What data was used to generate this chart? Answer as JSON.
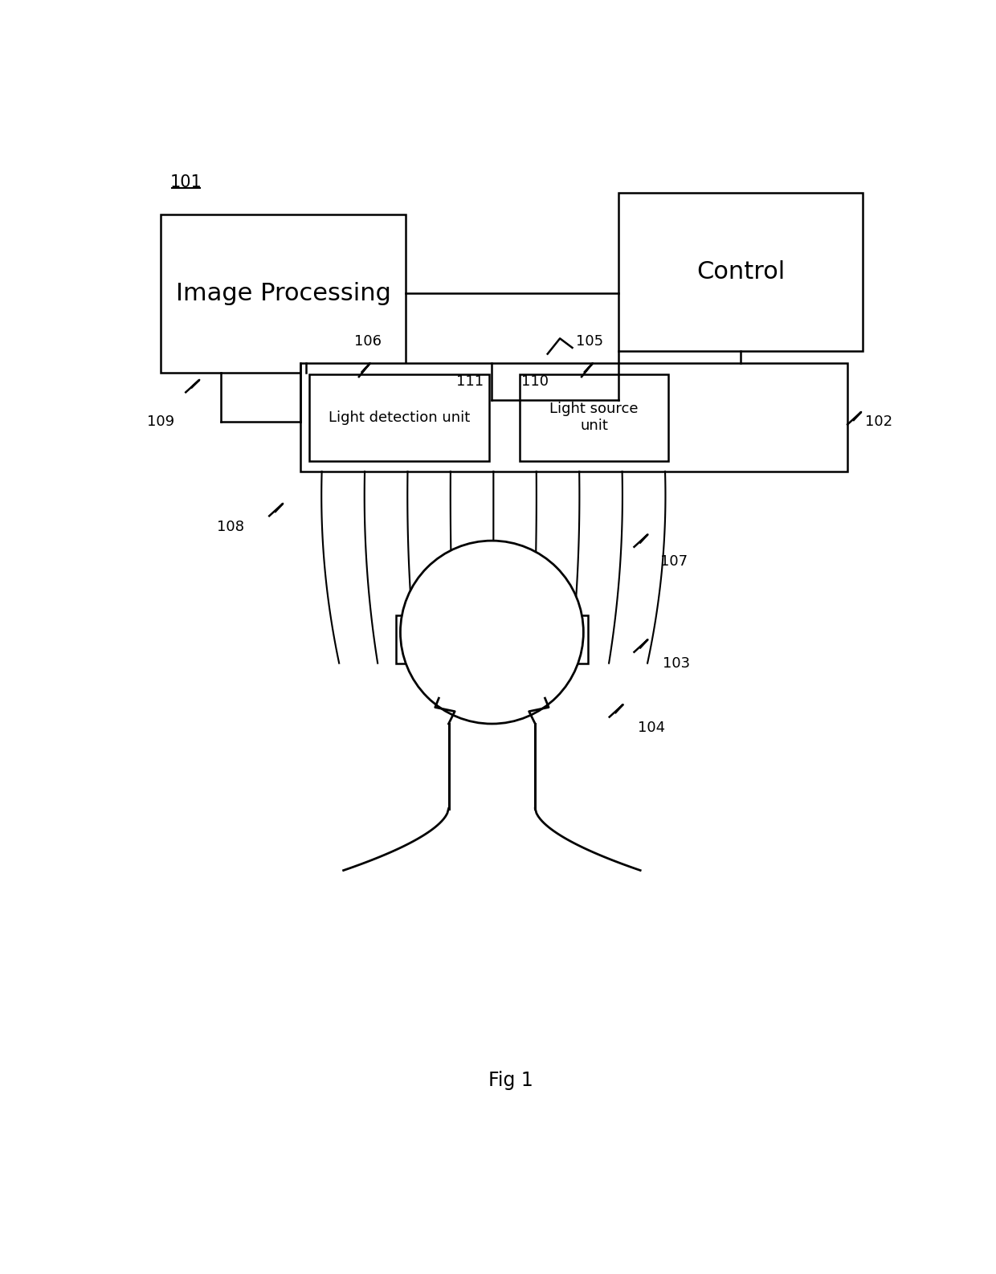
{
  "fig_width": 12.4,
  "fig_height": 15.86,
  "bg_color": "#ffffff",
  "label_101": "101",
  "label_102": "102",
  "label_103": "103",
  "label_104": "104",
  "label_105": "105",
  "label_106": "106",
  "label_107": "107",
  "label_108": "108",
  "label_109": "109",
  "label_110": "110",
  "label_111": "111",
  "text_image_processing": "Image Processing",
  "text_control": "Control",
  "text_light_detection": "Light detection unit",
  "text_light_source": "Light source\nunit",
  "fig_label": "Fig 1",
  "line_color": "#000000",
  "line_width": 1.8
}
